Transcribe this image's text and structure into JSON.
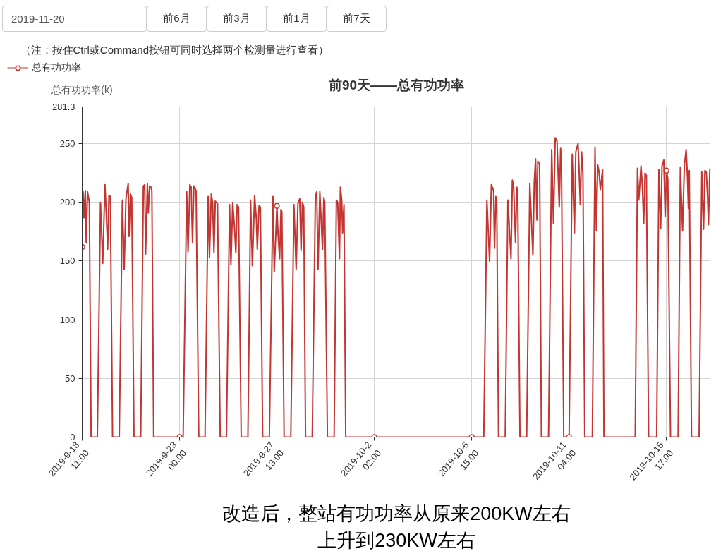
{
  "chart_data": {
    "type": "line",
    "title": "前90天——总有功功率",
    "ylabel": "总有功功率(k)",
    "annotations": [
      "2019-11-20",
      "前6月",
      "前3月",
      "前1月",
      "前7天",
      "（注：按住Ctrl或Command按钮可同时选择两个检测量进行查看）",
      "改造后，整站有功功率从原来200KW左右",
      "上升到230KW左右"
    ],
    "x": [
      "2019-09-18T11:00",
      "2019-09-18T12:00",
      "2019-09-18T13:00",
      "2019-09-18T14:30",
      "2019-09-18T15:30",
      "2019-09-18T17:00",
      "2019-09-18T19:00",
      "2019-09-18T21:00",
      "2019-09-19T04:00",
      "2019-09-19T07:30",
      "2019-09-19T10:00",
      "2019-09-19T12:30",
      "2019-09-19T14:30",
      "2019-09-19T15:30",
      "2019-09-19T17:00",
      "2019-09-19T18:30",
      "2019-09-19T21:00",
      "2019-09-20T04:30",
      "2019-09-20T08:00",
      "2019-09-20T10:00",
      "2019-09-20T12:00",
      "2019-09-20T14:30",
      "2019-09-20T15:30",
      "2019-09-20T17:00",
      "2019-09-20T18:30",
      "2019-09-20T21:00",
      "2019-09-21T04:30",
      "2019-09-21T07:30",
      "2019-09-21T09:00",
      "2019-09-21T10:00",
      "2019-09-21T12:00",
      "2019-09-21T13:00",
      "2019-09-21T14:30",
      "2019-09-21T16:00",
      "2019-09-21T17:00",
      "2019-09-21T19:00",
      "2019-09-23T00:00",
      "2019-09-23T04:00",
      "2019-09-23T08:00",
      "2019-09-23T09:30",
      "2019-09-23T11:30",
      "2019-09-23T13:00",
      "2019-09-23T14:30",
      "2019-09-23T16:00",
      "2019-09-23T18:30",
      "2019-09-23T21:30",
      "2019-09-24T04:30",
      "2019-09-24T08:00",
      "2019-09-24T09:30",
      "2019-09-24T11:30",
      "2019-09-24T13:00",
      "2019-09-24T14:30",
      "2019-09-24T16:00",
      "2019-09-24T18:30",
      "2019-09-24T21:30",
      "2019-09-25T04:30",
      "2019-09-25T08:00",
      "2019-09-25T09:30",
      "2019-09-25T11:30",
      "2019-09-25T13:30",
      "2019-09-25T15:00",
      "2019-09-25T16:30",
      "2019-09-25T18:00",
      "2019-09-25T21:00",
      "2019-09-26T04:30",
      "2019-09-26T07:30",
      "2019-09-26T09:30",
      "2019-09-26T12:00",
      "2019-09-26T14:00",
      "2019-09-26T15:00",
      "2019-09-26T17:00",
      "2019-09-26T18:30",
      "2019-09-26T21:00",
      "2019-09-27T04:30",
      "2019-09-27T08:30",
      "2019-09-27T10:00",
      "2019-09-27T13:00",
      "2019-09-27T14:00",
      "2019-09-27T16:00",
      "2019-09-27T17:30",
      "2019-09-27T18:30",
      "2019-09-27T21:00",
      "2019-09-28T04:30",
      "2019-09-28T08:00",
      "2019-09-28T10:30",
      "2019-09-28T12:30",
      "2019-09-28T14:30",
      "2019-09-28T16:00",
      "2019-09-28T17:30",
      "2019-09-28T19:00",
      "2019-09-28T21:00",
      "2019-09-29T04:30",
      "2019-09-29T08:00",
      "2019-09-29T09:30",
      "2019-09-29T11:00",
      "2019-09-29T13:00",
      "2019-09-29T16:00",
      "2019-09-29T17:30",
      "2019-09-29T18:30",
      "2019-09-29T21:30",
      "2019-09-30T05:00",
      "2019-09-30T07:30",
      "2019-09-30T09:00",
      "2019-09-30T11:00",
      "2019-09-30T12:00",
      "2019-09-30T13:30",
      "2019-09-30T14:30",
      "2019-09-30T16:00",
      "2019-09-30T18:00",
      "2019-10-02T02:00",
      "2019-10-06T15:00",
      "2019-10-07T04:30",
      "2019-10-07T08:00",
      "2019-10-07T11:00",
      "2019-10-07T13:00",
      "2019-10-07T15:30",
      "2019-10-07T16:30",
      "2019-10-07T18:00",
      "2019-10-07T19:00",
      "2019-10-07T21:00",
      "2019-10-08T04:30",
      "2019-10-08T07:30",
      "2019-10-08T11:00",
      "2019-10-08T12:30",
      "2019-10-08T14:00",
      "2019-10-08T16:00",
      "2019-10-08T17:30",
      "2019-10-08T18:30",
      "2019-10-08T21:00",
      "2019-10-09T04:30",
      "2019-10-09T08:00",
      "2019-10-09T11:30",
      "2019-10-09T13:00",
      "2019-10-09T14:30",
      "2019-10-09T16:00",
      "2019-10-09T17:00",
      "2019-10-09T19:00",
      "2019-10-09T21:00",
      "2019-10-10T05:00",
      "2019-10-10T08:30",
      "2019-10-10T10:30",
      "2019-10-10T12:30",
      "2019-10-10T14:30",
      "2019-10-10T17:00",
      "2019-10-10T18:30",
      "2019-10-10T19:30",
      "2019-10-10T22:00",
      "2019-10-11T04:00",
      "2019-10-11T07:30",
      "2019-10-11T10:00",
      "2019-10-11T11:30",
      "2019-10-11T14:00",
      "2019-10-11T15:00",
      "2019-10-11T16:30",
      "2019-10-11T18:00",
      "2019-10-11T19:30",
      "2019-10-11T21:30",
      "2019-10-12T06:00",
      "2019-10-12T09:00",
      "2019-10-12T10:30",
      "2019-10-12T12:00",
      "2019-10-12T13:30",
      "2019-10-12T15:00",
      "2019-10-12T17:30",
      "2019-10-12T19:00",
      "2019-10-14T06:00",
      "2019-10-14T08:30",
      "2019-10-14T10:00",
      "2019-10-14T12:30",
      "2019-10-14T14:00",
      "2019-10-14T15:30",
      "2019-10-14T17:00",
      "2019-10-14T18:30",
      "2019-10-14T21:00",
      "2019-10-15T06:00",
      "2019-10-15T08:30",
      "2019-10-15T10:30",
      "2019-10-15T12:00",
      "2019-10-15T14:00",
      "2019-10-15T15:30",
      "2019-10-15T17:00",
      "2019-10-15T18:30",
      "2019-10-15T21:30",
      "2019-10-16T06:00",
      "2019-10-16T08:30",
      "2019-10-16T11:00",
      "2019-10-16T13:00",
      "2019-10-16T15:00",
      "2019-10-16T16:30",
      "2019-10-16T17:30",
      "2019-10-16T18:30",
      "2019-10-16T21:00",
      "2019-10-17T05:30",
      "2019-10-17T08:30",
      "2019-10-17T10:30",
      "2019-10-17T12:00",
      "2019-10-17T13:30",
      "2019-10-17T15:00",
      "2019-10-17T16:00",
      "2019-10-17T17:30",
      "2019-10-17T18:30"
    ],
    "series": [
      {
        "name": "总有功功率",
        "color": "#c23531",
        "values": [
          162,
          209,
          187,
          210,
          166,
          209,
          200,
          0,
          0,
          200,
          148,
          215,
          181,
          160,
          206,
          205,
          0,
          0,
          202,
          143,
          203,
          216,
          171,
          207,
          204,
          0,
          0,
          214,
          215,
          156,
          216,
          191,
          214,
          213,
          210,
          0,
          0,
          0,
          209,
          158,
          215,
          213,
          166,
          214,
          210,
          0,
          0,
          205,
          153,
          207,
          200,
          157,
          201,
          199,
          0,
          0,
          198,
          147,
          200,
          178,
          157,
          198,
          196,
          0,
          0,
          202,
          146,
          206,
          185,
          160,
          197,
          196,
          0,
          0,
          205,
          141,
          197,
          176,
          152,
          194,
          192,
          0,
          0,
          198,
          143,
          199,
          203,
          159,
          200,
          196,
          0,
          0,
          205,
          209,
          143,
          209,
          160,
          204,
          200,
          0,
          0,
          202,
          200,
          152,
          213,
          202,
          174,
          198,
          0,
          0,
          0,
          0,
          202,
          150,
          215,
          210,
          161,
          205,
          202,
          0,
          0,
          202,
          152,
          219,
          213,
          166,
          213,
          206,
          0,
          0,
          216,
          155,
          217,
          237,
          185,
          235,
          233,
          0,
          0,
          245,
          182,
          255,
          252,
          196,
          246,
          226,
          0,
          0,
          241,
          174,
          243,
          250,
          232,
          198,
          243,
          224,
          0,
          0,
          247,
          176,
          232,
          226,
          211,
          228,
          0,
          0,
          229,
          202,
          231,
          214,
          182,
          225,
          223,
          0,
          0,
          228,
          178,
          231,
          236,
          188,
          227,
          220,
          0,
          0,
          230,
          176,
          231,
          245,
          221,
          195,
          227,
          0,
          0,
          226,
          177,
          227,
          226,
          205,
          181,
          228,
          229
        ]
      },
      {
        "type": "scatter",
        "color": "#c23531",
        "marker": "circle",
        "x": [
          "2019-09-18T11:00",
          "2019-09-23T00:00",
          "2019-09-27T13:00",
          "2019-10-02T02:00",
          "2019-10-06T15:00",
          "2019-10-11T04:00",
          "2019-10-15T17:00"
        ],
        "values": [
          162,
          0,
          197,
          0,
          0,
          0,
          227
        ]
      }
    ],
    "xlim": [
      "2019-09-18T11:00",
      "2019-10-17T18:30"
    ],
    "xticks": [
      {
        "value": "2019-09-18T11:00",
        "label": "2019-9-18\n11:00"
      },
      {
        "value": "2019-09-23T00:00",
        "label": "2019-9-23\n00:00"
      },
      {
        "value": "2019-09-27T13:00",
        "label": "2019-9-27\n13:00"
      },
      {
        "value": "2019-10-02T02:00",
        "label": "2019-10-2\n02:00"
      },
      {
        "value": "2019-10-06T15:00",
        "label": "2019-10-6\n15:00"
      },
      {
        "value": "2019-10-11T04:00",
        "label": "2019-10-11\n04:00"
      },
      {
        "value": "2019-10-15T17:00",
        "label": "2019-10-15\n17:00"
      }
    ],
    "ylim": [
      0,
      281.3
    ],
    "yticks": [
      0,
      50,
      100,
      150,
      200,
      250,
      281.3
    ],
    "grid": true,
    "legend": "top left",
    "line_style": "solid"
  }
}
